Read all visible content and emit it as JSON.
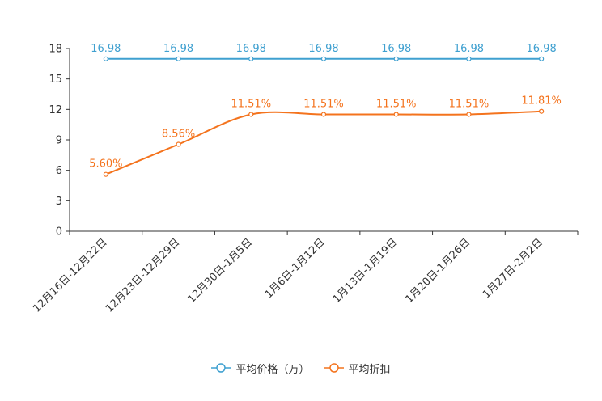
{
  "chart_data": {
    "type": "line",
    "title": "",
    "xlabel": "",
    "ylabel": "",
    "ylim": [
      0,
      18
    ],
    "yticks": [
      0,
      3,
      6,
      9,
      12,
      15,
      18
    ],
    "categories": [
      "12月16日-12月22日",
      "12月23日-12月29日",
      "12月30日-1月5日",
      "1月6日-1月12日",
      "1月13日-1月19日",
      "1月20日-1月26日",
      "1月27日-2月2日"
    ],
    "series": [
      {
        "name": "平均价格（万）",
        "color": "#3fa0d0",
        "values": [
          16.98,
          16.98,
          16.98,
          16.98,
          16.98,
          16.98,
          16.98
        ],
        "labels": [
          "16.98",
          "16.98",
          "16.98",
          "16.98",
          "16.98",
          "16.98",
          "16.98"
        ],
        "smooth": false
      },
      {
        "name": "平均折扣",
        "color": "#f4731d",
        "values": [
          5.6,
          8.56,
          11.51,
          11.51,
          11.51,
          11.51,
          11.81
        ],
        "labels": [
          "5.60%",
          "8.56%",
          "11.51%",
          "11.51%",
          "11.51%",
          "11.51%",
          "11.81%"
        ],
        "smooth": true
      }
    ],
    "legend": {
      "position": "bottom"
    }
  }
}
